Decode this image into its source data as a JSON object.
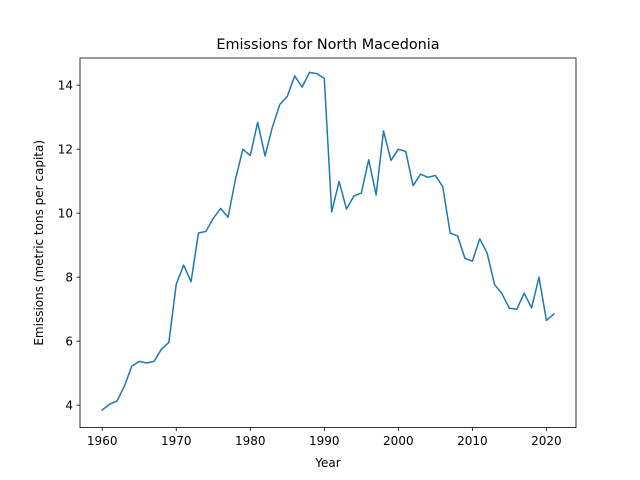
{
  "chart_data": {
    "type": "line",
    "title": "Emissions for North Macedonia",
    "xlabel": "Year",
    "ylabel": "Emissions (metric tons per capita)",
    "xlim": [
      1957,
      2024
    ],
    "ylim": [
      3.3,
      14.85
    ],
    "xticks": [
      1960,
      1970,
      1980,
      1990,
      2000,
      2010,
      2020
    ],
    "yticks": [
      4,
      6,
      8,
      10,
      12,
      14
    ],
    "grid": false,
    "legend": "none",
    "series": [
      {
        "color": "#1f77b4",
        "x": [
          1960,
          1961,
          1962,
          1963,
          1964,
          1965,
          1966,
          1967,
          1968,
          1969,
          1970,
          1971,
          1972,
          1973,
          1974,
          1975,
          1976,
          1977,
          1978,
          1979,
          1980,
          1981,
          1982,
          1983,
          1984,
          1985,
          1986,
          1987,
          1988,
          1989,
          1990,
          1991,
          1992,
          1993,
          1994,
          1995,
          1996,
          1997,
          1998,
          1999,
          2000,
          2001,
          2002,
          2003,
          2004,
          2005,
          2006,
          2007,
          2008,
          2009,
          2010,
          2011,
          2012,
          2013,
          2014,
          2015,
          2016,
          2017,
          2018,
          2019,
          2020,
          2021
        ],
        "y": [
          3.85,
          4.03,
          4.13,
          4.6,
          5.22,
          5.37,
          5.32,
          5.37,
          5.75,
          5.96,
          7.78,
          8.38,
          7.86,
          9.38,
          9.43,
          9.84,
          10.15,
          9.87,
          11.06,
          12.0,
          11.8,
          12.84,
          11.79,
          12.7,
          13.4,
          13.65,
          14.29,
          13.94,
          14.4,
          14.36,
          14.21,
          10.04,
          10.99,
          10.13,
          10.54,
          10.63,
          11.67,
          10.57,
          12.57,
          11.65,
          12.0,
          11.93,
          10.86,
          11.22,
          11.12,
          11.18,
          10.83,
          9.38,
          9.29,
          8.59,
          8.5,
          9.2,
          8.75,
          7.77,
          7.48,
          7.03,
          7.0,
          7.5,
          7.04,
          8.0,
          6.65,
          6.85
        ]
      }
    ]
  }
}
